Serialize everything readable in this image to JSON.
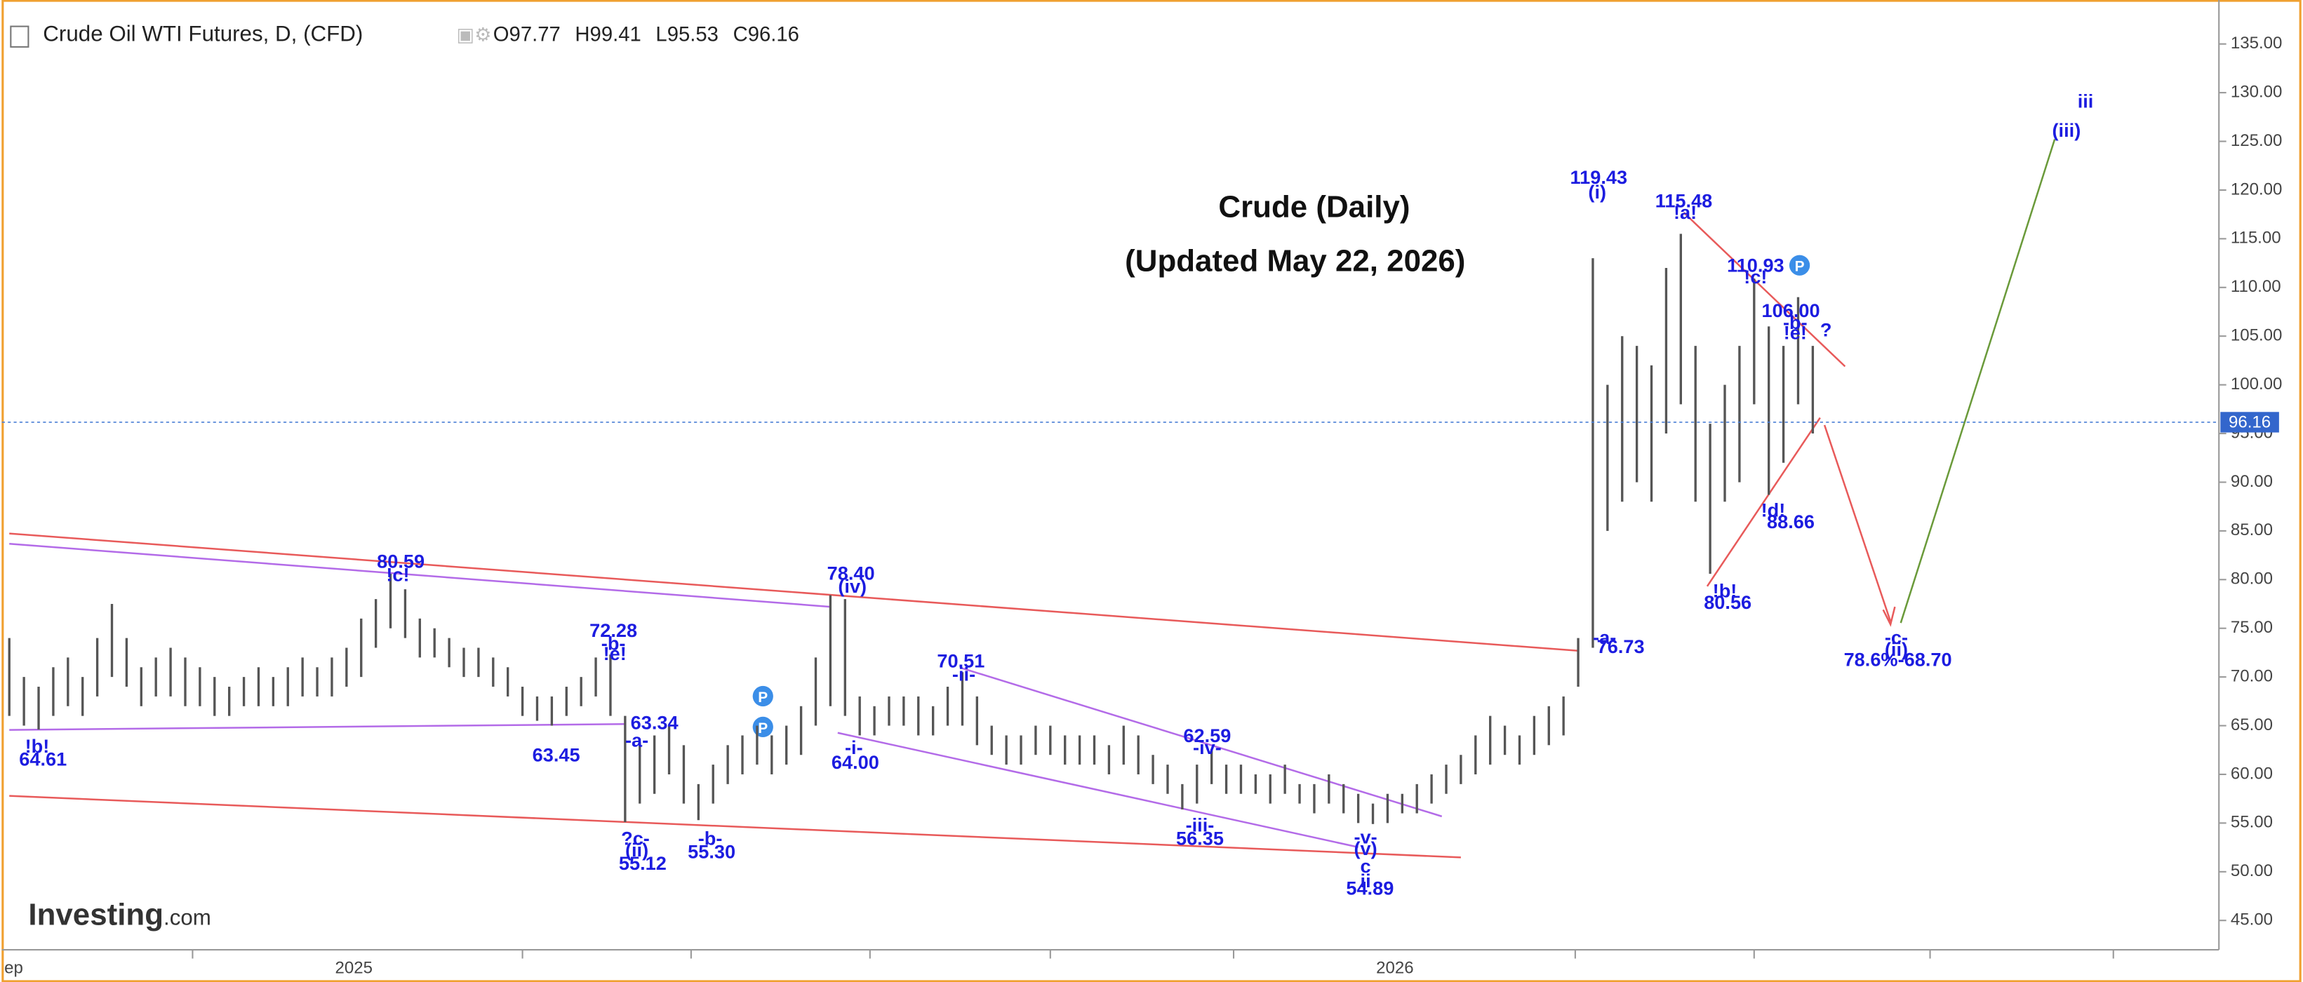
{
  "chart_data": {
    "type": "ohlc",
    "title": "Crude (Daily)",
    "subtitle": "(Updated May 22, 2026)",
    "symbol": "Crude Oil WTI Futures, D, (CFD)",
    "ohlc": {
      "open": 97.77,
      "high": 99.41,
      "low": 95.53,
      "close": 96.16
    },
    "ohlc_letters": {
      "open": "O",
      "high": "H",
      "low": "L",
      "close": "C"
    },
    "watermark": "Investing",
    "watermark_suffix": ".com",
    "categories": [
      "ep",
      null,
      null,
      null,
      null,
      null,
      null,
      null,
      null,
      null,
      null,
      null,
      null,
      null,
      null,
      null,
      null,
      null,
      null,
      null,
      null,
      null,
      null,
      null,
      "2025",
      null,
      null,
      null,
      null,
      null,
      null,
      null,
      null,
      null,
      null,
      null,
      null,
      null,
      null,
      null,
      null,
      null,
      null,
      null,
      null,
      null,
      null,
      null,
      null,
      null,
      null,
      null,
      null,
      null,
      null,
      null,
      null,
      null,
      null,
      null,
      null,
      null,
      null,
      null,
      null,
      null,
      null,
      null,
      null,
      null,
      null,
      null,
      null,
      null,
      null,
      null,
      null,
      null,
      null,
      null,
      null,
      null,
      null,
      null,
      null,
      null,
      null,
      null,
      null,
      null,
      null,
      null,
      null,
      null,
      null,
      "2026",
      null,
      null,
      null,
      null,
      null,
      null,
      null,
      null,
      null,
      null,
      null,
      null,
      null,
      null,
      null,
      null,
      null,
      null,
      null,
      null,
      null,
      null,
      null,
      null,
      null,
      null,
      null,
      null
    ],
    "series": [
      {
        "name": "high",
        "color": "#555555",
        "values": [
          74,
          70,
          69,
          71,
          72,
          70,
          74,
          77.5,
          74,
          71,
          72,
          73,
          72,
          71,
          70,
          69,
          70,
          71,
          70,
          71,
          72,
          71,
          72,
          73,
          76,
          78,
          80.6,
          79,
          76,
          75,
          74,
          73,
          73,
          72,
          71,
          69,
          68,
          68,
          69,
          70,
          72,
          72.3,
          66,
          63.3,
          64,
          65,
          63,
          59,
          61,
          63,
          64,
          65,
          64,
          65,
          67,
          72,
          78.4,
          78,
          68,
          67,
          68,
          68,
          68,
          67,
          69,
          70.5,
          68,
          65,
          64,
          64,
          65,
          65,
          64,
          64,
          64,
          63,
          65,
          64,
          62,
          61,
          59,
          61,
          62.6,
          61,
          61,
          60,
          60,
          61,
          59,
          59,
          60,
          59,
          58,
          57,
          58,
          58,
          59,
          60,
          61,
          62,
          64,
          66,
          65,
          64,
          66,
          67,
          68,
          74,
          113,
          100,
          105,
          104,
          102,
          112,
          115.5,
          104,
          96,
          100,
          104,
          110.9,
          106,
          104,
          109,
          104
        ]
      },
      {
        "name": "low",
        "color": "#555555",
        "values": [
          66,
          65,
          64.6,
          66,
          67,
          66,
          68,
          70,
          69,
          67,
          68,
          68,
          67,
          67,
          66,
          66,
          67,
          67,
          67,
          67,
          68,
          68,
          68,
          69,
          70,
          73,
          75,
          74,
          72,
          72,
          71,
          70,
          70,
          69,
          68,
          66,
          65.5,
          65,
          66,
          67,
          68,
          66,
          55.1,
          57,
          58,
          60,
          57,
          55.3,
          57,
          59,
          60,
          61,
          60,
          61,
          62,
          65,
          67,
          66,
          64,
          64,
          65,
          65,
          64,
          64,
          65,
          65,
          63,
          62,
          61,
          61,
          62,
          62,
          61,
          61,
          61,
          60,
          61,
          60,
          59,
          58,
          56.4,
          57,
          59,
          58,
          58,
          58,
          57,
          58,
          57,
          56,
          57,
          56,
          55,
          54.9,
          55,
          56,
          56,
          57,
          58,
          59,
          60,
          61,
          62,
          61,
          62,
          63,
          64,
          69,
          73,
          85,
          88,
          90,
          88,
          95,
          98,
          88,
          80.6,
          88,
          90,
          98,
          88.7,
          92,
          98,
          95
        ]
      }
    ],
    "ylim": [
      45,
      135
    ],
    "yticks": [
      {
        "value": 45,
        "label": "45.00"
      },
      {
        "value": 50,
        "label": "50.00"
      },
      {
        "value": 55,
        "label": "55.00"
      },
      {
        "value": 60,
        "label": "60.00"
      },
      {
        "value": 65,
        "label": "65.00"
      },
      {
        "value": 70,
        "label": "70.00"
      },
      {
        "value": 75,
        "label": "75.00"
      },
      {
        "value": 80,
        "label": "80.00"
      },
      {
        "value": 85,
        "label": "85.00"
      },
      {
        "value": 90,
        "label": "90.00"
      },
      {
        "value": 95,
        "label": "95.00"
      },
      {
        "value": 100,
        "label": "100.00"
      },
      {
        "value": 105,
        "label": "105.00"
      },
      {
        "value": 110,
        "label": "110.00"
      },
      {
        "value": 115,
        "label": "115.00"
      },
      {
        "value": 120,
        "label": "120.00"
      },
      {
        "value": 125,
        "label": "125.00"
      },
      {
        "value": 130,
        "label": "130.00"
      },
      {
        "value": 135,
        "label": "135.00"
      }
    ],
    "annotations": [
      "!b!",
      "64.61",
      "80.59",
      "!c!",
      "72.28",
      "-b-",
      "!e!",
      "63.45",
      "63.34",
      "-a-",
      "?c-",
      "(ii)",
      "55.12",
      "-b-",
      "55.30",
      "78.40",
      "(iv)",
      "-i-",
      "64.00",
      "70.51",
      "-ii-",
      "62.59",
      "-iv-",
      "-iii-",
      "56.35",
      "-v-",
      "(v)",
      "c",
      "ii",
      "54.89",
      "119.43",
      "(i)",
      "115.48",
      "!a!",
      "110.93",
      "!c!",
      "106.00",
      "-b-",
      "!e!",
      "?",
      "!d!",
      "88.66",
      "!b!",
      "80.56",
      "-a-",
      "76.73",
      "-c-",
      "(ii)",
      "78.6%-68.70",
      "iii",
      "(iii)"
    ]
  }
}
